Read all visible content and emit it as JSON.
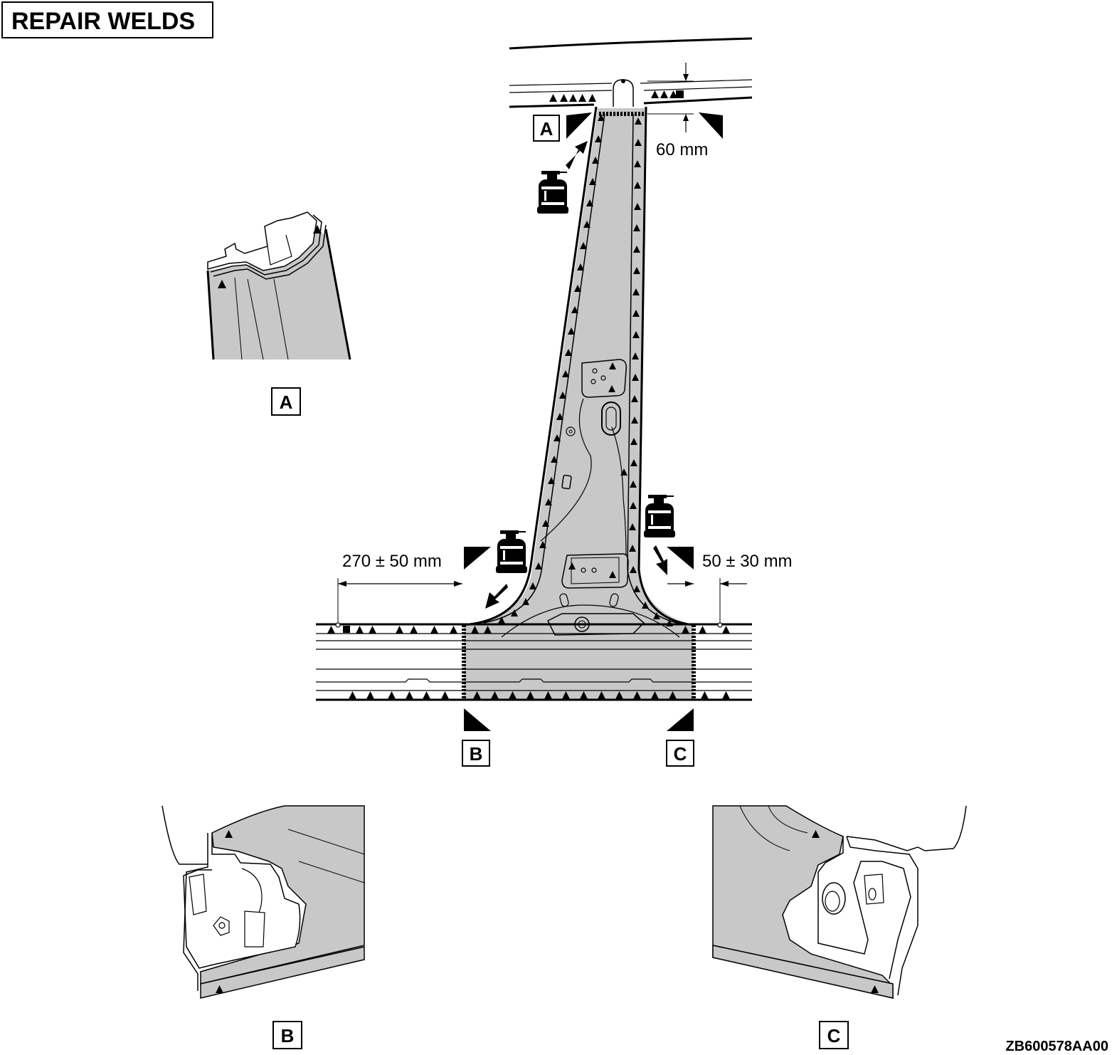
{
  "title": "REPAIR WELDS",
  "dimensions": {
    "top_gap": "60 mm",
    "left_cut": "270 ± 50 mm",
    "right_cut": "50 ± 30 mm"
  },
  "section_markers": {
    "a_top": "A",
    "b_bottom": "B",
    "c_bottom": "C"
  },
  "detail_labels": {
    "a": "A",
    "b": "B",
    "c": "C"
  },
  "figure_code": "ZB600578AA00",
  "colors": {
    "panel_fill": "#c8c8c8",
    "line": "#000000",
    "background": "#ffffff"
  }
}
